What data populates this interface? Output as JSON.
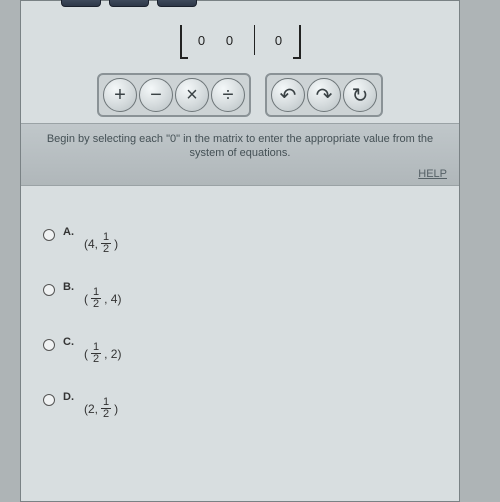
{
  "top_buttons": {
    "count": 3
  },
  "matrix": {
    "cells": [
      "0",
      "0",
      "0"
    ],
    "separator_after_index": 1
  },
  "tools": {
    "group1": [
      {
        "name": "plus-icon",
        "glyph": "+"
      },
      {
        "name": "minus-icon",
        "glyph": "−"
      },
      {
        "name": "multiply-icon",
        "glyph": "×"
      },
      {
        "name": "divide-icon",
        "glyph": "÷"
      }
    ],
    "group2": [
      {
        "name": "undo-icon",
        "glyph": "↶"
      },
      {
        "name": "redo-icon",
        "glyph": "↷"
      },
      {
        "name": "refresh-icon",
        "glyph": "↻"
      }
    ]
  },
  "hint": {
    "text": "Begin by selecting each \"0\" in the matrix to enter the appropriate value from the system of equations.",
    "help_label": "HELP"
  },
  "choices": [
    {
      "letter": "A.",
      "prefix": "(4, ",
      "frac_n": "1",
      "frac_d": "2",
      "suffix": ")"
    },
    {
      "letter": "B.",
      "prefix": "(",
      "frac_n": "1",
      "frac_d": "2",
      "suffix": ", 4)"
    },
    {
      "letter": "C.",
      "prefix": "(",
      "frac_n": "1",
      "frac_d": "2",
      "suffix": ", 2)"
    },
    {
      "letter": "D.",
      "prefix": "(2, ",
      "frac_n": "1",
      "frac_d": "2",
      "suffix": ")"
    }
  ],
  "colors": {
    "page_bg": "#aeb4b6",
    "panel_bg": "#d8dee0",
    "border": "#7a8285",
    "text": "#333"
  }
}
